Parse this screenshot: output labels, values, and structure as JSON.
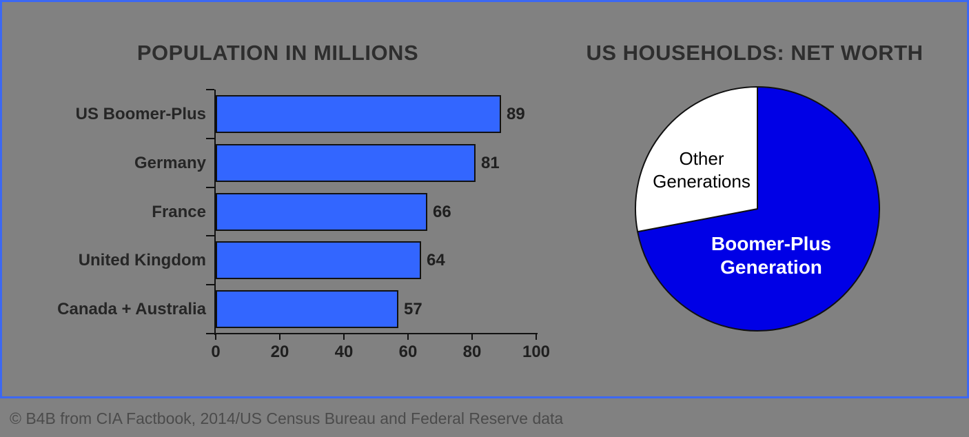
{
  "colors": {
    "background": "#818181",
    "panel_border": "#3C68F2",
    "bar_fill": "#3366FF",
    "pie_blue": "#0000E6",
    "pie_white": "#FFFFFF",
    "chart_text": "#1F1F1F",
    "footer_text": "#4B4B4B"
  },
  "chart_data": [
    {
      "type": "bar",
      "orientation": "horizontal",
      "title": "POPULATION IN MILLIONS",
      "categories": [
        "US Boomer-Plus",
        "Germany",
        "France",
        "United Kingdom",
        "Canada + Australia"
      ],
      "values": [
        89,
        81,
        66,
        64,
        57
      ],
      "value_labels_shown": true,
      "xlabel": "",
      "ylabel": "",
      "xlim": [
        0,
        100
      ],
      "x_ticks": [
        0,
        20,
        40,
        60,
        80,
        100
      ],
      "grid": false,
      "bar_color": "#3366FF"
    },
    {
      "type": "pie",
      "title": "US HOUSEHOLDS: NET WORTH",
      "slices": [
        {
          "label": "Boomer-Plus Generation",
          "value": 72,
          "color": "#0000E6",
          "label_color": "#FFFFFF"
        },
        {
          "label": "Other Generations",
          "value": 28,
          "color": "#FFFFFF",
          "label_color": "#000000"
        }
      ],
      "values_estimated_from_angles": true,
      "start_at_twelve_oclock": true,
      "legend_position": "inside"
    }
  ],
  "footer": {
    "credit": "© B4B from CIA Factbook, 2014/US Census Bureau and Federal Reserve data"
  }
}
